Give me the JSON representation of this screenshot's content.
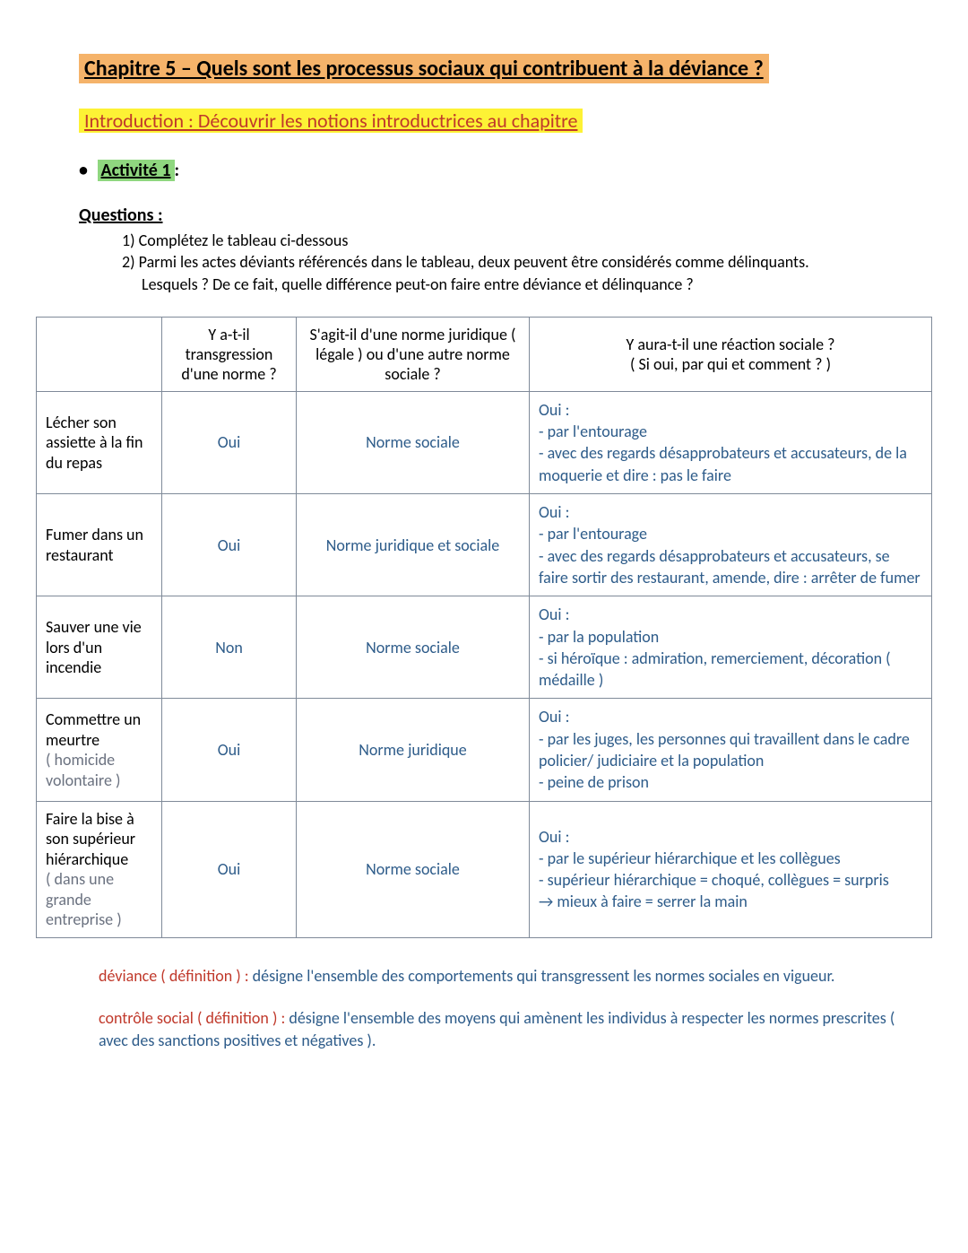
{
  "colors": {
    "title_bg": "#f5b36a",
    "title_text": "#000000",
    "intro_bg": "#fdf235",
    "intro_text": "#c0392b",
    "activity_bg": "#8fd77f",
    "activity_text": "#000000",
    "answer_text": "#2e5c8a",
    "definition_term": "#c0392b",
    "definition_text": "#2e5c8a",
    "table_border": "#7f8a99",
    "row_label_paren": "#6b7280"
  },
  "chapter_title": "Chapitre 5 – Quels sont les processus sociaux qui contribuent à la déviance ?",
  "intro_title": " Introduction : Découvrir les notions introductrices au chapitre ",
  "activity_label": " Activité 1 ",
  "activity_suffix": ":",
  "questions_heading": "Questions  :",
  "questions": [
    "1) Complétez le tableau ci-dessous",
    "2) Parmi les actes déviants référencés dans le tableau, deux peuvent être considérés comme délinquants."
  ],
  "question_sub": "Lesquels ? De ce fait, quelle différence peut-on faire entre déviance et délinquance ?",
  "table": {
    "headers": {
      "col1": "",
      "col2": "Y a-t-il transgression d'une norme ?",
      "col3": "S'agit-il d'une norme juridique ( légale ) ou d'une autre norme sociale ?",
      "col4_line1": "Y aura-t-il une réaction sociale ?",
      "col4_line2": "( Si oui, par qui et comment ? )"
    },
    "col_widths": [
      "140px",
      "150px",
      "260px",
      "auto"
    ],
    "rows": [
      {
        "label_main": "Lécher son assiette à la fin du repas",
        "label_paren": "",
        "transgression": "Oui",
        "norme": "Norme sociale",
        "reaction": "Oui :\n- par l'entourage\n- avec des regards désapprobateurs et accusateurs, de la moquerie et dire : pas le faire"
      },
      {
        "label_main": "Fumer dans un restaurant",
        "label_paren": "",
        "transgression": "Oui",
        "norme": "Norme juridique et sociale",
        "reaction": "Oui :\n- par l'entourage\n- avec des regards désapprobateurs et accusateurs, se faire sortir des restaurant, amende, dire : arrêter de fumer"
      },
      {
        "label_main": "Sauver une vie lors d'un incendie",
        "label_paren": "",
        "transgression": "Non",
        "norme": "Norme sociale",
        "reaction": "Oui :\n- par la population\n- si héroïque : admiration, remerciement, décoration ( médaille )"
      },
      {
        "label_main": "Commettre un meurtre",
        "label_paren": "( homicide volontaire )",
        "transgression": "Oui",
        "norme": "Norme juridique",
        "reaction": "Oui :\n- par les juges, les personnes qui travaillent dans le cadre policier/ judiciaire et la population\n- peine de prison"
      },
      {
        "label_main": "Faire la bise à son supérieur hiérarchique",
        "label_paren": "( dans une grande entreprise )",
        "transgression": "Oui",
        "norme": "Norme sociale",
        "reaction": "Oui :\n- par le supérieur hiérarchique et les collègues\n- supérieur hiérarchique = choqué, collègues = surpris\n→ mieux à faire = serrer la main"
      }
    ]
  },
  "definitions": [
    {
      "term": "déviance ( définition ) : ",
      "text": "désigne l'ensemble des comportements qui transgressent les normes sociales en vigueur."
    },
    {
      "term": "contrôle social ( définition ) : ",
      "text": "désigne l'ensemble des moyens qui amènent les individus à respecter les normes prescrites ( avec des sanctions positives et négatives )."
    }
  ]
}
